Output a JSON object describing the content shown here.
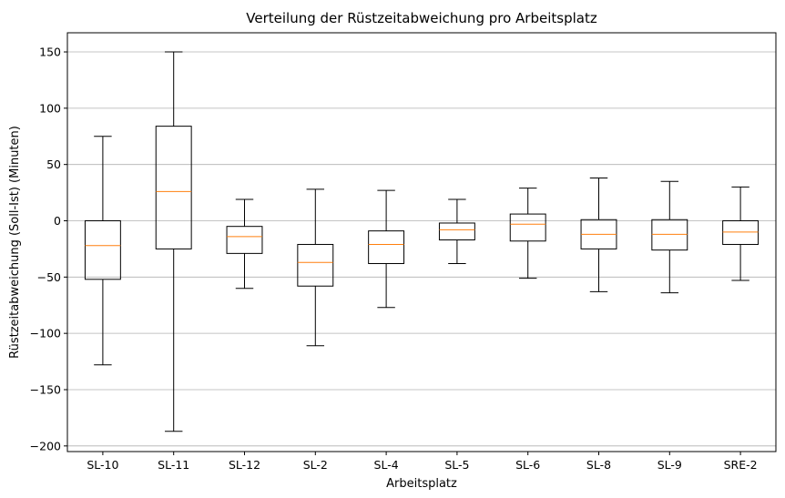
{
  "chart_data": {
    "type": "boxplot",
    "title": "Verteilung der Rüstzeitabweichung pro Arbeitsplatz",
    "xlabel": "Arbeitsplatz",
    "ylabel": "Rüstzeitabweichung (Soll-Ist) (Minuten)",
    "ylim": [
      -205,
      167
    ],
    "yticks": [
      -200,
      -150,
      -100,
      -50,
      0,
      50,
      100,
      150
    ],
    "ytick_labels": [
      "−200",
      "−150",
      "−100",
      "−50",
      "0",
      "50",
      "100",
      "150"
    ],
    "grid": "horizontal",
    "categories": [
      "SL-10",
      "SL-11",
      "SL-12",
      "SL-2",
      "SL-4",
      "SL-5",
      "SL-6",
      "SL-8",
      "SL-9",
      "SRE-2"
    ],
    "boxes": [
      {
        "whisker_low": -128,
        "q1": -52,
        "median": -22,
        "q3": 0,
        "whisker_high": 75
      },
      {
        "whisker_low": -187,
        "q1": -25,
        "median": 26,
        "q3": 84,
        "whisker_high": 150
      },
      {
        "whisker_low": -60,
        "q1": -29,
        "median": -14,
        "q3": -5,
        "whisker_high": 19
      },
      {
        "whisker_low": -111,
        "q1": -58,
        "median": -37,
        "q3": -21,
        "whisker_high": 28
      },
      {
        "whisker_low": -77,
        "q1": -38,
        "median": -21,
        "q3": -9,
        "whisker_high": 27
      },
      {
        "whisker_low": -38,
        "q1": -17,
        "median": -8,
        "q3": -2,
        "whisker_high": 19
      },
      {
        "whisker_low": -51,
        "q1": -18,
        "median": -3,
        "q3": 6,
        "whisker_high": 29
      },
      {
        "whisker_low": -63,
        "q1": -25,
        "median": -12,
        "q3": 1,
        "whisker_high": 38
      },
      {
        "whisker_low": -64,
        "q1": -26,
        "median": -12,
        "q3": 1,
        "whisker_high": 35
      },
      {
        "whisker_low": -53,
        "q1": -21,
        "median": -10,
        "q3": 0,
        "whisker_high": 30
      }
    ],
    "colors": {
      "box": "#000000",
      "median": "#ff7f0e",
      "grid": "#b0b0b0"
    }
  }
}
